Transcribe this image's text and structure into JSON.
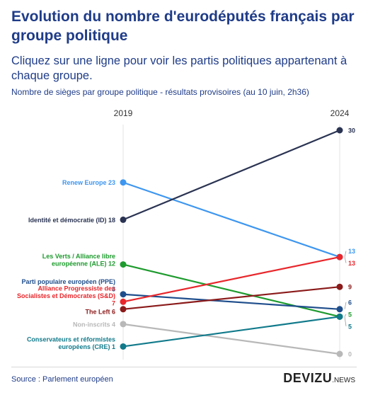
{
  "header": {
    "title": "Evolution du nombre d'eurodéputés français par groupe politique",
    "subtitle": "Cliquez sur une ligne pour voir les partis politiques appartenant à chaque groupe.",
    "description": "Nombre de sièges par groupe politique - résultats provisoires (au 10 juin, 2h36)"
  },
  "footer": {
    "source": "Source : Parlement européen",
    "brand": "DEVIZU",
    "brand_suffix": ".NEWS"
  },
  "chart_data": {
    "type": "line",
    "x": [
      "2019",
      "2024"
    ],
    "ylim": [
      0,
      30
    ],
    "series": [
      {
        "key": "renew",
        "name": "Renew Europe",
        "label_lines": [
          "Renew Europe 23"
        ],
        "values": [
          23,
          13
        ],
        "color": "#3d96f0"
      },
      {
        "key": "id",
        "name": "Identité et démocratie (ID)",
        "label_lines": [
          "Identité et démocratie (ID) 18"
        ],
        "values": [
          18,
          30
        ],
        "color": "#2a3352"
      },
      {
        "key": "ale",
        "name": "Les Verts / Alliance libre européenne (ALE)",
        "label_lines": [
          "Les Verts / Alliance libre",
          "européenne (ALE) 12"
        ],
        "values": [
          12,
          5
        ],
        "color": "#1e9b2e"
      },
      {
        "key": "ppe",
        "name": "Parti populaire européen (PPE)",
        "label_lines": [
          "Parti populaire européen (PPE)",
          "8"
        ],
        "values": [
          8,
          6
        ],
        "color": "#1f4e8c"
      },
      {
        "key": "sd",
        "name": "Alliance Progressiste des Socialistes et Démocrates (S&D)",
        "label_lines": [
          "Alliance Progressiste des",
          "Socialistes et Démocrates (S&D)",
          "7"
        ],
        "values": [
          7,
          13
        ],
        "color": "#e8262b"
      },
      {
        "key": "left",
        "name": "The Left",
        "label_lines": [
          "The Left 6"
        ],
        "values": [
          6,
          9
        ],
        "color": "#8b1a1a"
      },
      {
        "key": "ni",
        "name": "Non-inscrits",
        "label_lines": [
          "Non-inscrits 4"
        ],
        "values": [
          4,
          0
        ],
        "color": "#b8b8b8"
      },
      {
        "key": "cre",
        "name": "Conservateurs et réformistes européens (CRE)",
        "label_lines": [
          "Conservateurs et réformistes",
          "européens (CRE) 1"
        ],
        "values": [
          1,
          5
        ],
        "color": "#117a8b"
      }
    ],
    "grid": false,
    "legend": "direct labels"
  }
}
